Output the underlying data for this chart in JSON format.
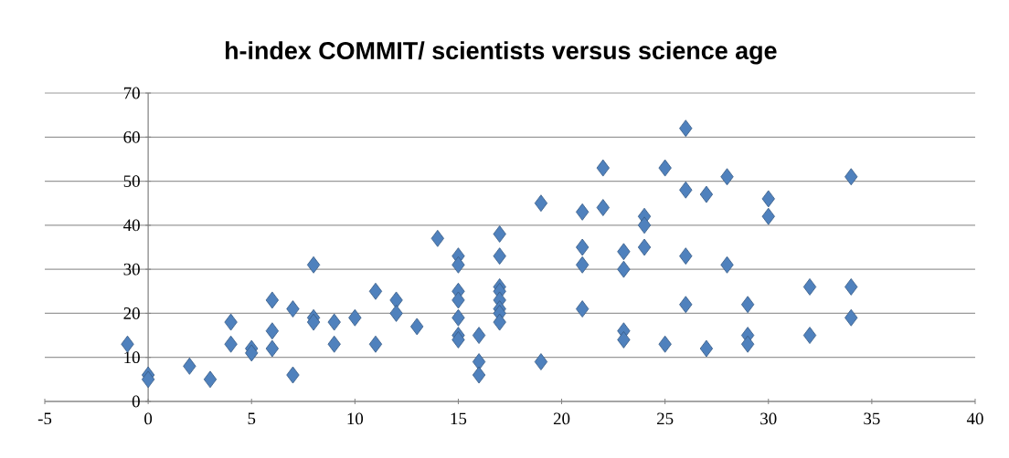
{
  "chart_data": {
    "type": "scatter",
    "title": "h-index COMMIT/ scientists versus science age",
    "x": [
      -1,
      0,
      0,
      2,
      3,
      4,
      4,
      5,
      5,
      6,
      6,
      6,
      7,
      7,
      8,
      8,
      8,
      9,
      9,
      10,
      11,
      11,
      12,
      12,
      13,
      14,
      15,
      15,
      15,
      15,
      15,
      15,
      15,
      16,
      16,
      16,
      17,
      17,
      17,
      17,
      17,
      17,
      17,
      17,
      19,
      19,
      21,
      21,
      21,
      21,
      22,
      22,
      23,
      23,
      23,
      23,
      24,
      24,
      24,
      25,
      25,
      26,
      26,
      26,
      26,
      27,
      27,
      28,
      28,
      29,
      29,
      29,
      30,
      30,
      32,
      32,
      34,
      34,
      34
    ],
    "values": [
      13,
      6,
      5,
      8,
      5,
      18,
      13,
      12,
      11,
      23,
      16,
      12,
      21,
      6,
      31,
      19,
      18,
      18,
      13,
      19,
      25,
      13,
      23,
      20,
      17,
      37,
      33,
      31,
      25,
      23,
      19,
      15,
      14,
      15,
      9,
      6,
      38,
      33,
      26,
      25,
      23,
      21,
      20,
      18,
      45,
      9,
      43,
      35,
      31,
      21,
      53,
      44,
      34,
      30,
      16,
      14,
      42,
      40,
      35,
      53,
      13,
      62,
      48,
      33,
      22,
      47,
      12,
      51,
      31,
      22,
      15,
      13,
      46,
      42,
      26,
      15,
      51,
      26,
      19
    ],
    "color": "#4f81bd",
    "marker": "diamond",
    "grid": "y",
    "xlim": [
      -5,
      40
    ],
    "xticks": [
      -5,
      0,
      5,
      10,
      15,
      20,
      25,
      30,
      35,
      40
    ],
    "ylim": [
      0,
      70
    ],
    "yticks": [
      0,
      10,
      20,
      30,
      40,
      50,
      60,
      70
    ]
  }
}
